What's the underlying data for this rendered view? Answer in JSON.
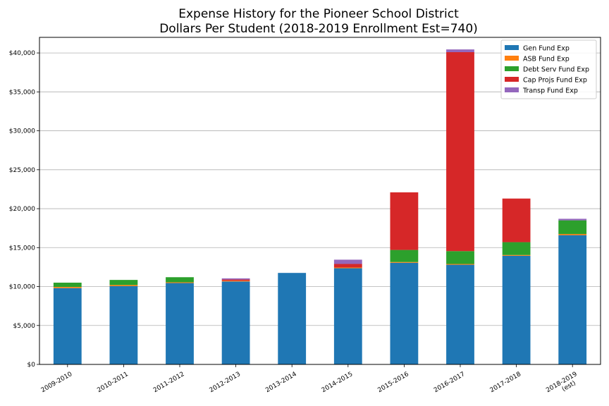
{
  "chart_data": {
    "type": "bar",
    "stacked": true,
    "title": "Expense History for the Pioneer School District",
    "subtitle": "Dollars Per Student (2018-2019 Enrollment Est=740)",
    "xlabel": "",
    "ylabel": "",
    "ylim": [
      0,
      42000
    ],
    "yticks": [
      0,
      5000,
      10000,
      15000,
      20000,
      25000,
      30000,
      35000,
      40000
    ],
    "ytick_labels": [
      "$0",
      "$5,000",
      "$10,000",
      "$15,000",
      "$20,000",
      "$25,000",
      "$30,000",
      "$35,000",
      "$40,000"
    ],
    "grid": true,
    "legend_position": "top-right",
    "categories": [
      "2009-2010",
      "2010-2011",
      "2011-2012",
      "2012-2013",
      "2013-2014",
      "2014-2015",
      "2015-2016",
      "2016-2017",
      "2017-2018",
      "2018-2019\n(est)"
    ],
    "series": [
      {
        "name": "Gen Fund Exp",
        "color": "#1f77b4",
        "values": [
          9800,
          10050,
          10450,
          10650,
          11750,
          12350,
          13050,
          12800,
          13950,
          16600
        ]
      },
      {
        "name": "ASB Fund Exp",
        "color": "#ff7f0e",
        "values": [
          150,
          150,
          100,
          100,
          0,
          100,
          100,
          100,
          100,
          150
        ]
      },
      {
        "name": "Debt Serv Fund Exp",
        "color": "#2ca02c",
        "values": [
          550,
          650,
          650,
          0,
          0,
          0,
          1550,
          1650,
          1650,
          1750
        ]
      },
      {
        "name": "Cap Projs Fund Exp",
        "color": "#d62728",
        "values": [
          0,
          0,
          0,
          150,
          0,
          450,
          7400,
          25550,
          5600,
          0
        ]
      },
      {
        "name": "Transp Fund Exp",
        "color": "#9467bd",
        "values": [
          0,
          0,
          0,
          150,
          0,
          550,
          0,
          350,
          0,
          200
        ]
      }
    ]
  }
}
